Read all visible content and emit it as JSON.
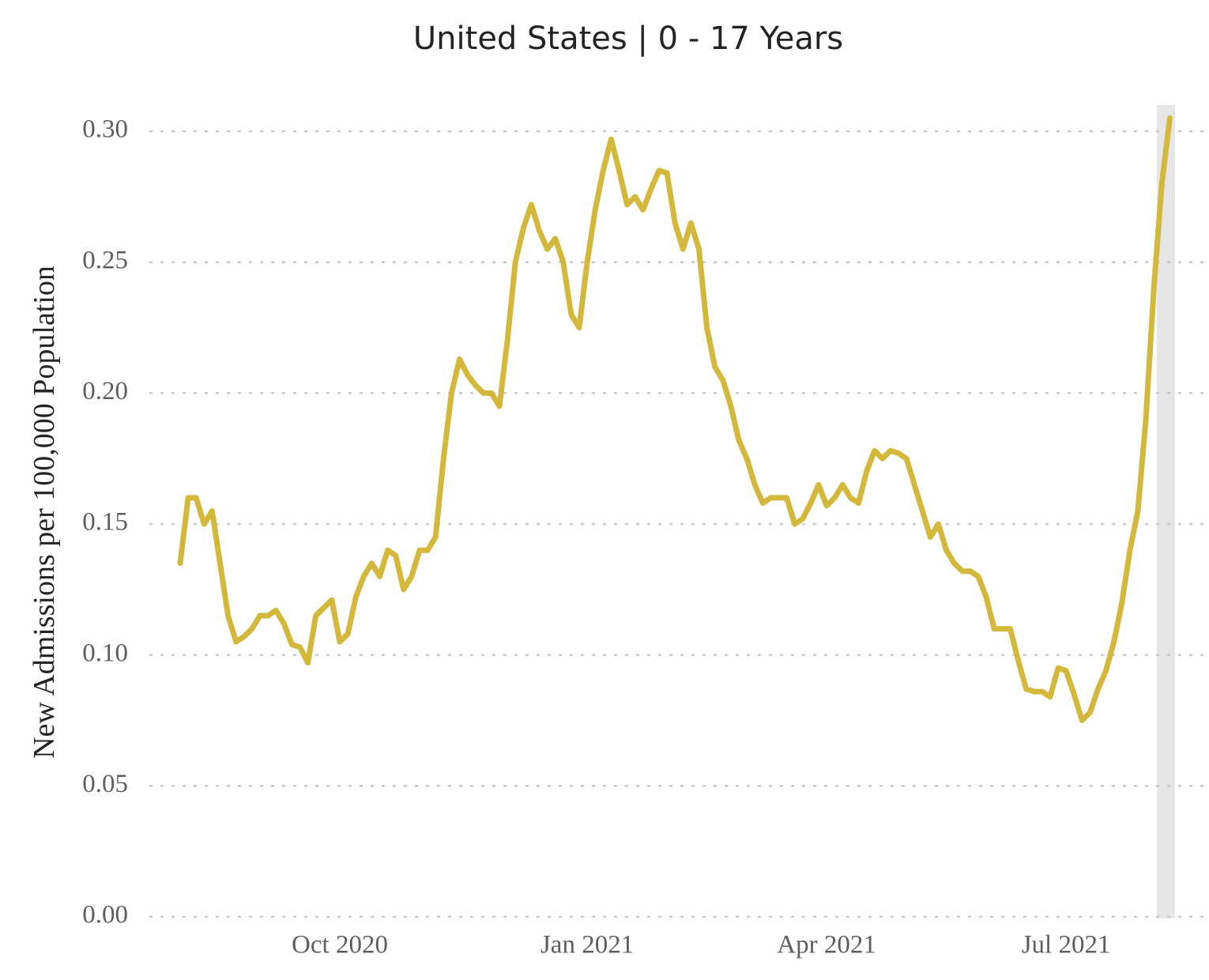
{
  "chart_data": {
    "type": "line",
    "title": "United States | 0 - 17 Years",
    "y_label": "New Admissions per 100,000 Population",
    "color": "#d4b83c",
    "grid": true,
    "ylim": [
      0,
      0.31
    ],
    "yticks": [
      {
        "value": 0,
        "label": "0.00"
      },
      {
        "value": 0.05,
        "label": "0.05"
      },
      {
        "value": 0.1,
        "label": "0.10"
      },
      {
        "value": 0.15,
        "label": "0.15"
      },
      {
        "value": 0.2,
        "label": "0.20"
      },
      {
        "value": 0.25,
        "label": "0.25"
      },
      {
        "value": 0.3,
        "label": "0.30"
      }
    ],
    "categories": [
      null,
      null,
      null,
      null,
      null,
      null,
      null,
      null,
      null,
      null,
      null,
      null,
      null,
      null,
      null,
      null,
      null,
      null,
      null,
      null,
      "Oct 2020",
      null,
      null,
      null,
      null,
      null,
      null,
      null,
      null,
      null,
      null,
      null,
      null,
      null,
      null,
      null,
      null,
      null,
      null,
      null,
      null,
      null,
      null,
      null,
      null,
      null,
      null,
      null,
      null,
      null,
      null,
      "Jan 2021",
      null,
      null,
      null,
      null,
      null,
      null,
      null,
      null,
      null,
      null,
      null,
      null,
      null,
      null,
      null,
      null,
      null,
      null,
      null,
      null,
      null,
      null,
      null,
      null,
      null,
      null,
      null,
      null,
      null,
      "Apr 2021",
      null,
      null,
      null,
      null,
      null,
      null,
      null,
      null,
      null,
      null,
      null,
      null,
      null,
      null,
      null,
      null,
      null,
      null,
      null,
      null,
      null,
      null,
      null,
      null,
      null,
      null,
      null,
      null,
      null,
      "Jul 2021",
      null,
      null,
      null,
      null,
      null,
      null,
      null,
      null,
      null,
      null,
      null,
      null,
      null
    ],
    "values": [
      0.135,
      0.16,
      0.16,
      0.15,
      0.155,
      0.135,
      0.115,
      0.105,
      0.107,
      0.11,
      0.115,
      0.115,
      0.117,
      0.112,
      0.104,
      0.103,
      0.097,
      0.115,
      0.118,
      0.121,
      0.105,
      0.108,
      0.122,
      0.13,
      0.135,
      0.13,
      0.14,
      0.138,
      0.125,
      0.13,
      0.14,
      0.14,
      0.145,
      0.175,
      0.2,
      0.213,
      0.207,
      0.203,
      0.2,
      0.2,
      0.195,
      0.22,
      0.25,
      0.263,
      0.272,
      0.262,
      0.255,
      0.259,
      0.25,
      0.23,
      0.225,
      0.25,
      0.27,
      0.285,
      0.297,
      0.285,
      0.272,
      0.275,
      0.27,
      0.278,
      0.285,
      0.284,
      0.265,
      0.255,
      0.265,
      0.255,
      0.225,
      0.21,
      0.205,
      0.195,
      0.182,
      0.175,
      0.165,
      0.158,
      0.16,
      0.16,
      0.16,
      0.15,
      0.152,
      0.158,
      0.165,
      0.157,
      0.16,
      0.165,
      0.16,
      0.158,
      0.17,
      0.178,
      0.175,
      0.178,
      0.177,
      0.175,
      0.165,
      0.155,
      0.145,
      0.15,
      0.14,
      0.135,
      0.132,
      0.132,
      0.13,
      0.122,
      0.11,
      0.11,
      0.11,
      0.098,
      0.087,
      0.086,
      0.086,
      0.084,
      0.095,
      0.094,
      0.085,
      0.075,
      0.078,
      0.087,
      0.094,
      0.105,
      0.12,
      0.14,
      0.155,
      0.19,
      0.24,
      0.28,
      0.305
    ]
  }
}
